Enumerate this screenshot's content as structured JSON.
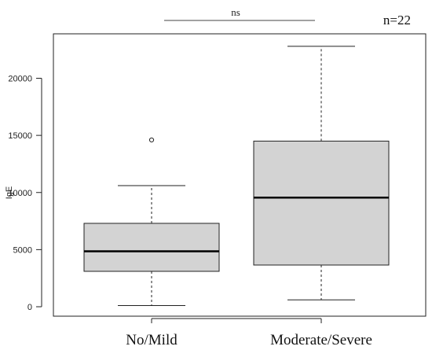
{
  "chart_data": {
    "type": "boxplot",
    "title": "",
    "xlabel": "",
    "ylabel": "IgE",
    "ylim": [
      -1000,
      23700
    ],
    "yticks": [
      0,
      5000,
      10000,
      15000,
      20000
    ],
    "categories": [
      "No/Mild",
      "Moderate/Severe"
    ],
    "boxes": [
      {
        "category": "No/Mild",
        "whisker_low": 100,
        "q1": 3100,
        "median": 4850,
        "q3": 7300,
        "whisker_high": 10600,
        "outliers": [
          14600
        ]
      },
      {
        "category": "Moderate/Severe",
        "whisker_low": 600,
        "q1": 3650,
        "median": 9550,
        "q3": 14500,
        "whisker_high": 22800,
        "outliers": []
      }
    ],
    "box_fill": "#d3d3d3",
    "grid": false,
    "legend": "none",
    "annotations": {
      "significance_label": "ns",
      "sample_size": "n=22"
    }
  }
}
